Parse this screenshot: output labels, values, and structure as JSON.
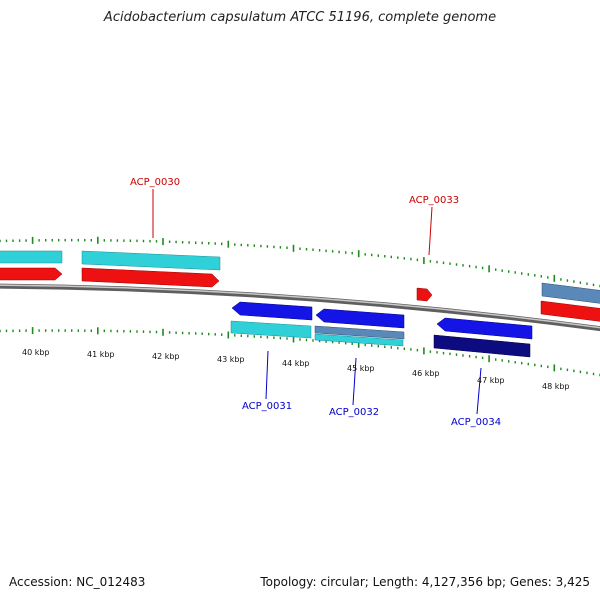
{
  "title": "Acidobacterium capsulatum ATCC 51196, complete genome",
  "footer": {
    "accession": "Accession: NC_012483",
    "summary": "Topology: circular; Length: 4,127,356 bp; Genes: 3,425"
  },
  "colors": {
    "backbone": "#8c8c8c",
    "tick": "#1f8a1f",
    "top_label": "#cc0000",
    "bottom_label": "#0000cc",
    "cyan": "#30d0d8",
    "red": "#ee1111",
    "blue": "#1414e6",
    "steel": "#5a88b8",
    "navy": "#0c0c80"
  },
  "scale_labels": [
    "40 kbp",
    "41 kbp",
    "42 kbp",
    "43 kbp",
    "44 kbp",
    "45 kbp",
    "46 kbp",
    "47 kbp",
    "48 kbp"
  ],
  "top_genes": [
    {
      "label": "ACP_0030",
      "color": "red"
    },
    {
      "label": "ACP_0033",
      "color": "red"
    }
  ],
  "bottom_genes": [
    {
      "label": "ACP_0031",
      "color": "blue"
    },
    {
      "label": "ACP_0032",
      "color": "blue"
    },
    {
      "label": "ACP_0034",
      "color": "navy"
    }
  ]
}
